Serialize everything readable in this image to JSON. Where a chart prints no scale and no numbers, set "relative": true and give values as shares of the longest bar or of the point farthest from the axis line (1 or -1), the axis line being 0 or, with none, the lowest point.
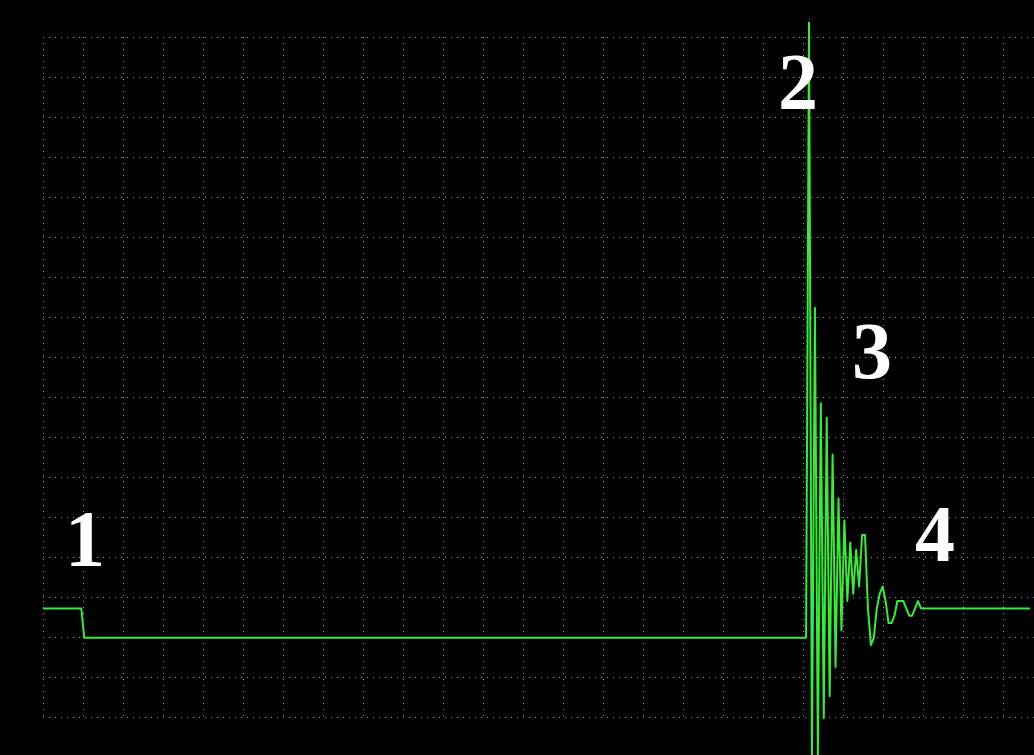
{
  "chart_data": {
    "type": "line",
    "relative": true,
    "grid": true,
    "legend": false,
    "marker": "none",
    "line_style": "solid",
    "annotations": [
      "1",
      "2",
      "3",
      "4"
    ],
    "categories": [
      null,
      null,
      null,
      null,
      null,
      null,
      null,
      null,
      null,
      null,
      null,
      null,
      null,
      null,
      null,
      null,
      null,
      null,
      null,
      null,
      null,
      null,
      null,
      null,
      null,
      null,
      null,
      null,
      null,
      null,
      null,
      null,
      null,
      null,
      null,
      null,
      null,
      null,
      null,
      null,
      null,
      null,
      null,
      null,
      null,
      null,
      null,
      null,
      null,
      null,
      null,
      null,
      null,
      null,
      null,
      null,
      null,
      null,
      null,
      null,
      null,
      null,
      null,
      null,
      null,
      null,
      null,
      null,
      null,
      null,
      null,
      null,
      null,
      null,
      null,
      null,
      null,
      null,
      null,
      null,
      null,
      null,
      null,
      null,
      null,
      null,
      null,
      null,
      null,
      null,
      null,
      null,
      null,
      null,
      null,
      null,
      null,
      null,
      null,
      null,
      null,
      null,
      null,
      null,
      null,
      null,
      null,
      null,
      null,
      null,
      null,
      null,
      null,
      null,
      null,
      null,
      null,
      null,
      null,
      null,
      null,
      null,
      null,
      null,
      null,
      null,
      null,
      null,
      null,
      null,
      null,
      null,
      null,
      null,
      null,
      null,
      null,
      null,
      null,
      null,
      null,
      null,
      null,
      null,
      null,
      null,
      null,
      null,
      null,
      null,
      null,
      null,
      null,
      null,
      null,
      null,
      null,
      null,
      null,
      null,
      null,
      null,
      null,
      null,
      null,
      null,
      null,
      null,
      null,
      null,
      null,
      null,
      null,
      null,
      null,
      null,
      null,
      null,
      null,
      null,
      null,
      null,
      null,
      null,
      null,
      null,
      null,
      null,
      null,
      null,
      null,
      null,
      null,
      null,
      null,
      null,
      null,
      null,
      null,
      null,
      null,
      null,
      null,
      null,
      null,
      null,
      null,
      null,
      null,
      null,
      null,
      null,
      null,
      null,
      null,
      null,
      null,
      null,
      null,
      null,
      null,
      null,
      null,
      null,
      null,
      null,
      null,
      null,
      null,
      null,
      null,
      null,
      null,
      null,
      null,
      null,
      null,
      null,
      null,
      null,
      null,
      null,
      null,
      null,
      null,
      null,
      null,
      null,
      null,
      null,
      null,
      null,
      null,
      null,
      null,
      null,
      null,
      null,
      null,
      null,
      null,
      null,
      null,
      null,
      null,
      null,
      null,
      null,
      null,
      null,
      null,
      null,
      null,
      null,
      null,
      null,
      null,
      null,
      null,
      null,
      null,
      null,
      null,
      null,
      null,
      null,
      null,
      null,
      null,
      null,
      null,
      null,
      null,
      null,
      null,
      null,
      null,
      null,
      null,
      null,
      null,
      null,
      null,
      null,
      null,
      null,
      null,
      null,
      null,
      null,
      null,
      null,
      null,
      null,
      null,
      null,
      null,
      null,
      null,
      null,
      null,
      null,
      null,
      null,
      null,
      null,
      null,
      null,
      null,
      null,
      null,
      null,
      null,
      null,
      null,
      null
    ],
    "series": [
      {
        "color": "#33ee33",
        "values": [
          0.2,
          0.2,
          0.2,
          0.2,
          0.2,
          0.2,
          0.2,
          0.2,
          0.2,
          0.2,
          0.2,
          0.2,
          0.2,
          0.2,
          0.16,
          0.16,
          0.16,
          0.16,
          0.16,
          0.16,
          0.16,
          0.16,
          0.16,
          0.16,
          0.16,
          0.16,
          0.16,
          0.16,
          0.16,
          0.16,
          0.16,
          0.16,
          0.16,
          0.16,
          0.16,
          0.16,
          0.16,
          0.16,
          0.16,
          0.16,
          0.16,
          0.16,
          0.16,
          0.16,
          0.16,
          0.16,
          0.16,
          0.16,
          0.16,
          0.16,
          0.16,
          0.16,
          0.16,
          0.16,
          0.16,
          0.16,
          0.16,
          0.16,
          0.16,
          0.16,
          0.16,
          0.16,
          0.16,
          0.16,
          0.16,
          0.16,
          0.16,
          0.16,
          0.16,
          0.16,
          0.16,
          0.16,
          0.16,
          0.16,
          0.16,
          0.16,
          0.16,
          0.16,
          0.16,
          0.16,
          0.16,
          0.16,
          0.16,
          0.16,
          0.16,
          0.16,
          0.16,
          0.16,
          0.16,
          0.16,
          0.16,
          0.16,
          0.16,
          0.16,
          0.16,
          0.16,
          0.16,
          0.16,
          0.16,
          0.16,
          0.16,
          0.16,
          0.16,
          0.16,
          0.16,
          0.16,
          0.16,
          0.16,
          0.16,
          0.16,
          0.16,
          0.16,
          0.16,
          0.16,
          0.16,
          0.16,
          0.16,
          0.16,
          0.16,
          0.16,
          0.16,
          0.16,
          0.16,
          0.16,
          0.16,
          0.16,
          0.16,
          0.16,
          0.16,
          0.16,
          0.16,
          0.16,
          0.16,
          0.16,
          0.16,
          0.16,
          0.16,
          0.16,
          0.16,
          0.16,
          0.16,
          0.16,
          0.16,
          0.16,
          0.16,
          0.16,
          0.16,
          0.16,
          0.16,
          0.16,
          0.16,
          0.16,
          0.16,
          0.16,
          0.16,
          0.16,
          0.16,
          0.16,
          0.16,
          0.16,
          0.16,
          0.16,
          0.16,
          0.16,
          0.16,
          0.16,
          0.16,
          0.16,
          0.16,
          0.16,
          0.16,
          0.16,
          0.16,
          0.16,
          0.16,
          0.16,
          0.16,
          0.16,
          0.16,
          0.16,
          0.16,
          0.16,
          0.16,
          0.16,
          0.16,
          0.16,
          0.16,
          0.16,
          0.16,
          0.16,
          0.16,
          0.16,
          0.16,
          0.16,
          0.16,
          0.16,
          0.16,
          0.16,
          0.16,
          0.16,
          0.16,
          0.16,
          0.16,
          0.16,
          0.16,
          0.16,
          0.16,
          0.16,
          0.16,
          0.16,
          0.16,
          0.16,
          0.16,
          0.16,
          0.16,
          0.16,
          0.16,
          0.16,
          0.16,
          0.16,
          0.16,
          0.16,
          0.16,
          0.16,
          0.16,
          0.16,
          0.16,
          0.16,
          0.16,
          0.16,
          0.16,
          0.16,
          0.16,
          0.16,
          0.16,
          0.16,
          0.16,
          0.16,
          0.16,
          0.16,
          0.16,
          0.16,
          0.16,
          0.16,
          0.16,
          0.16,
          0.16,
          0.16,
          0.16,
          0.16,
          0.16,
          0.16,
          0.16,
          0.16,
          0.16,
          0.16,
          0.16,
          0.16,
          0.16,
          0.16,
          1,
          0,
          0.61,
          0,
          0.48,
          0.05,
          0.46,
          0.08,
          0.41,
          0.12,
          0.35,
          0.17,
          0.32,
          0.21,
          0.29,
          0.22,
          0.28,
          0.23,
          0.3,
          0.3,
          0.2,
          0.15,
          0.16,
          0.2,
          0.22,
          0.23,
          0.21,
          0.18,
          0.18,
          0.19,
          0.21,
          0.21,
          0.21,
          0.2,
          0.19,
          0.19,
          0.2,
          0.21,
          0.2,
          0.2,
          0.2,
          0.2,
          0.2,
          0.2,
          0.2,
          0.2,
          0.2,
          0.2,
          0.2,
          0.2,
          0.2,
          0.2,
          0.2,
          0.2,
          0.2,
          0.2,
          0.2,
          0.2,
          0.2,
          0.2,
          0.2,
          0.2,
          0.2,
          0.2,
          0.2,
          0.2,
          0.2,
          0.2,
          0.2,
          0.2,
          0.2,
          0.2,
          0.2,
          0.2,
          0.2,
          0.2
        ]
      }
    ]
  }
}
